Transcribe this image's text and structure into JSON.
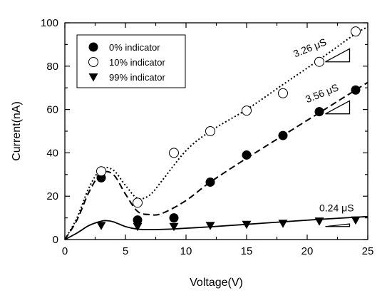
{
  "chart_data": {
    "type": "scatter",
    "title": "",
    "xlabel": "Voltage(V)",
    "ylabel": "Current(nA)",
    "xlim": [
      0,
      25
    ],
    "ylim": [
      0,
      100
    ],
    "xticks": [
      0,
      5,
      10,
      15,
      20,
      25
    ],
    "yticks": [
      0,
      20,
      40,
      60,
      80,
      100
    ],
    "minor_ticks": true,
    "grid": false,
    "legend": {
      "placement": "top-left",
      "boxed": true
    },
    "series": [
      {
        "name": "0% indicator",
        "marker": "filled-circle",
        "x": [
          3,
          6,
          9,
          12,
          15,
          18,
          21,
          24
        ],
        "y": [
          28.5,
          9,
          10,
          26.5,
          39,
          48,
          59,
          69
        ]
      },
      {
        "name": "10% indicator",
        "marker": "open-circle",
        "x": [
          3,
          6,
          9,
          12,
          15,
          18,
          21,
          24
        ],
        "y": [
          31.5,
          17,
          40,
          50,
          59.5,
          67.5,
          82,
          96
        ]
      },
      {
        "name": "99% indicator",
        "marker": "filled-triangle-down",
        "x": [
          3,
          6,
          9,
          12,
          15,
          18,
          21,
          24
        ],
        "y": [
          6.5,
          6,
          6,
          6.5,
          7,
          7.5,
          8.5,
          9
        ]
      }
    ],
    "fit_curves": [
      {
        "style": "dashed",
        "x": [
          0,
          1,
          2,
          3,
          4,
          5,
          6,
          7,
          8,
          10,
          12,
          15,
          18,
          21,
          24,
          25
        ],
        "y": [
          0,
          9,
          22,
          30.5,
          30,
          21,
          13,
          11.5,
          12,
          18,
          26.5,
          37.5,
          48,
          58.5,
          69,
          72.5
        ]
      },
      {
        "style": "dotted",
        "x": [
          0,
          1,
          2,
          3,
          4,
          5,
          6,
          7,
          8,
          10,
          12,
          15,
          18,
          21,
          24,
          25
        ],
        "y": [
          0,
          10,
          24,
          32.5,
          32,
          25,
          19,
          20.5,
          27,
          41,
          50,
          60,
          71.5,
          83,
          95,
          98
        ]
      },
      {
        "style": "solid",
        "x": [
          0,
          1,
          2,
          3,
          3.5,
          4,
          5,
          6,
          7,
          9,
          12,
          15,
          18,
          21,
          24,
          25
        ],
        "y": [
          0,
          3,
          6.5,
          8.5,
          8.7,
          8.2,
          6,
          4.8,
          4.6,
          4.9,
          5.9,
          7,
          8.2,
          9.3,
          10.3,
          10.6
        ]
      }
    ],
    "annotations": [
      {
        "text": "3.26 μS",
        "x": 19,
        "y": 84,
        "rotate": -22
      },
      {
        "text": "3.56 μS",
        "x": 20,
        "y": 63,
        "rotate": -22
      },
      {
        "text": "0.24 μS",
        "x": 21,
        "y": 13,
        "rotate": 0
      }
    ],
    "slope_triangles": [
      {
        "x1": 21.5,
        "x2": 23.5,
        "y_low": 82,
        "y_high": 88
      },
      {
        "x1": 21.5,
        "x2": 23.5,
        "y_low": 58,
        "y_high": 64
      },
      {
        "x1": 21.5,
        "x2": 23.5,
        "y_low": 6,
        "y_high": 7.2
      }
    ]
  }
}
